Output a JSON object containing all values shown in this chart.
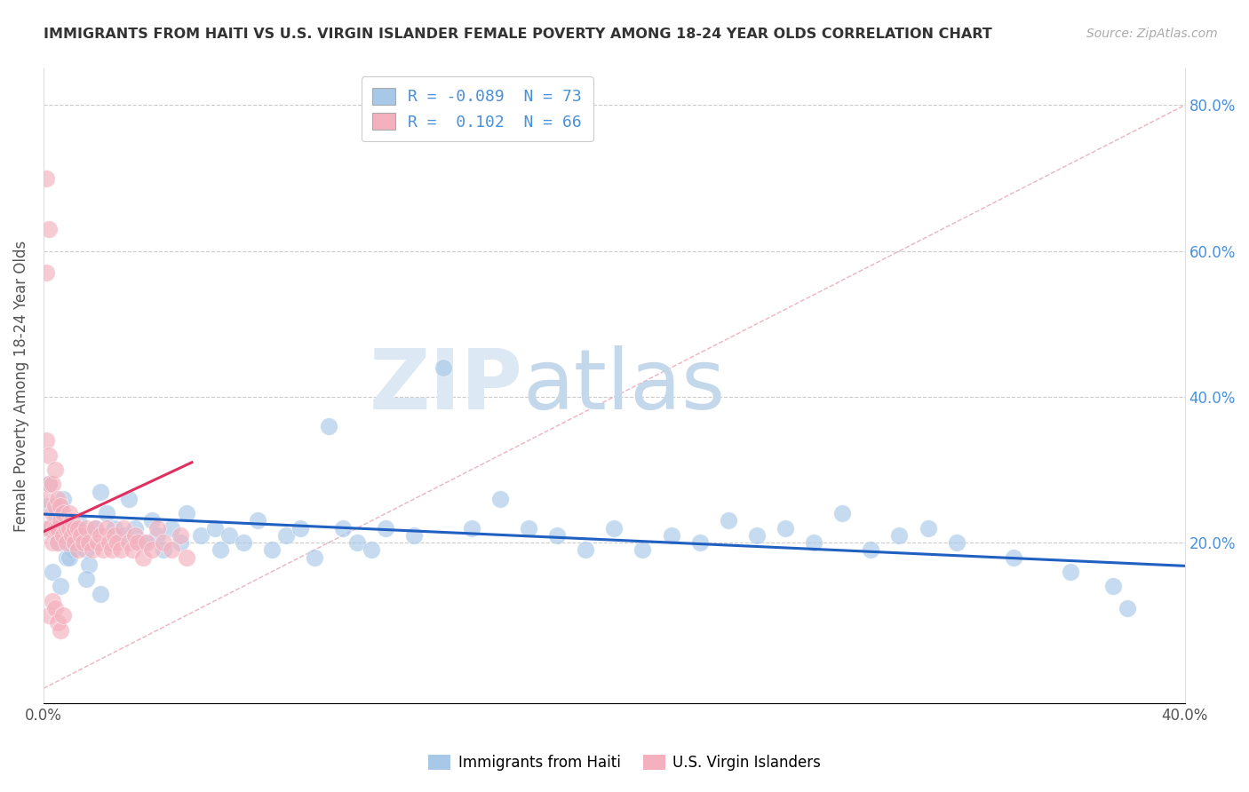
{
  "title": "IMMIGRANTS FROM HAITI VS U.S. VIRGIN ISLANDER FEMALE POVERTY AMONG 18-24 YEAR OLDS CORRELATION CHART",
  "source": "Source: ZipAtlas.com",
  "xlabel": "",
  "ylabel": "Female Poverty Among 18-24 Year Olds",
  "legend_label_1": "Immigrants from Haiti",
  "legend_label_2": "U.S. Virgin Islanders",
  "R1": -0.089,
  "N1": 73,
  "R2": 0.102,
  "N2": 66,
  "xlim": [
    0.0,
    0.4
  ],
  "ylim": [
    -0.02,
    0.85
  ],
  "color_blue": "#a8c8e8",
  "color_pink": "#f4b0be",
  "color_blue_line": "#2060c0",
  "color_pink_line": "#e03060",
  "color_diag": "#e8a0b0",
  "title_color": "#333333",
  "source_color": "#999999",
  "watermark_zip": "ZIP",
  "watermark_atlas": "atlas",
  "watermark_color_zip": "#d8e4f0",
  "watermark_color_atlas": "#c8d8e8",
  "blue_x": [
    0.001,
    0.002,
    0.003,
    0.004,
    0.005,
    0.006,
    0.007,
    0.008,
    0.009,
    0.01,
    0.011,
    0.012,
    0.013,
    0.015,
    0.016,
    0.018,
    0.02,
    0.022,
    0.025,
    0.028,
    0.03,
    0.032,
    0.035,
    0.038,
    0.04,
    0.042,
    0.045,
    0.048,
    0.05,
    0.055,
    0.06,
    0.062,
    0.065,
    0.07,
    0.075,
    0.08,
    0.085,
    0.09,
    0.095,
    0.1,
    0.105,
    0.11,
    0.115,
    0.12,
    0.13,
    0.14,
    0.15,
    0.16,
    0.17,
    0.18,
    0.19,
    0.2,
    0.21,
    0.22,
    0.23,
    0.24,
    0.25,
    0.26,
    0.27,
    0.28,
    0.29,
    0.3,
    0.31,
    0.32,
    0.34,
    0.36,
    0.375,
    0.38,
    0.003,
    0.006,
    0.009,
    0.015,
    0.02
  ],
  "blue_y": [
    0.25,
    0.28,
    0.22,
    0.24,
    0.2,
    0.23,
    0.26,
    0.18,
    0.22,
    0.19,
    0.2,
    0.23,
    0.21,
    0.19,
    0.17,
    0.22,
    0.27,
    0.24,
    0.22,
    0.21,
    0.26,
    0.22,
    0.2,
    0.23,
    0.21,
    0.19,
    0.22,
    0.2,
    0.24,
    0.21,
    0.22,
    0.19,
    0.21,
    0.2,
    0.23,
    0.19,
    0.21,
    0.22,
    0.18,
    0.36,
    0.22,
    0.2,
    0.19,
    0.22,
    0.21,
    0.44,
    0.22,
    0.26,
    0.22,
    0.21,
    0.19,
    0.22,
    0.19,
    0.21,
    0.2,
    0.23,
    0.21,
    0.22,
    0.2,
    0.24,
    0.19,
    0.21,
    0.22,
    0.2,
    0.18,
    0.16,
    0.14,
    0.11,
    0.16,
    0.14,
    0.18,
    0.15,
    0.13
  ],
  "pink_x": [
    0.001,
    0.001,
    0.001,
    0.002,
    0.002,
    0.002,
    0.003,
    0.003,
    0.003,
    0.004,
    0.004,
    0.004,
    0.005,
    0.005,
    0.005,
    0.006,
    0.006,
    0.007,
    0.007,
    0.008,
    0.008,
    0.009,
    0.009,
    0.01,
    0.01,
    0.011,
    0.011,
    0.012,
    0.012,
    0.013,
    0.014,
    0.015,
    0.016,
    0.017,
    0.018,
    0.019,
    0.02,
    0.021,
    0.022,
    0.023,
    0.024,
    0.025,
    0.026,
    0.027,
    0.028,
    0.03,
    0.031,
    0.032,
    0.033,
    0.035,
    0.036,
    0.038,
    0.04,
    0.042,
    0.045,
    0.048,
    0.05,
    0.002,
    0.003,
    0.004,
    0.005,
    0.006,
    0.007,
    0.001,
    0.002,
    0.001
  ],
  "pink_y": [
    0.22,
    0.34,
    0.26,
    0.28,
    0.22,
    0.32,
    0.24,
    0.2,
    0.28,
    0.25,
    0.22,
    0.3,
    0.22,
    0.26,
    0.2,
    0.23,
    0.25,
    0.24,
    0.21,
    0.22,
    0.2,
    0.24,
    0.22,
    0.21,
    0.23,
    0.2,
    0.22,
    0.22,
    0.19,
    0.21,
    0.2,
    0.22,
    0.2,
    0.19,
    0.22,
    0.2,
    0.21,
    0.19,
    0.22,
    0.2,
    0.19,
    0.21,
    0.2,
    0.19,
    0.22,
    0.2,
    0.19,
    0.21,
    0.2,
    0.18,
    0.2,
    0.19,
    0.22,
    0.2,
    0.19,
    0.21,
    0.18,
    0.1,
    0.12,
    0.11,
    0.09,
    0.08,
    0.1,
    0.7,
    0.63,
    0.57
  ],
  "blue_trend_x": [
    0.0,
    0.4
  ],
  "blue_trend_y": [
    0.239,
    0.168
  ],
  "pink_trend_x": [
    0.0,
    0.052
  ],
  "pink_trend_y": [
    0.215,
    0.31
  ]
}
